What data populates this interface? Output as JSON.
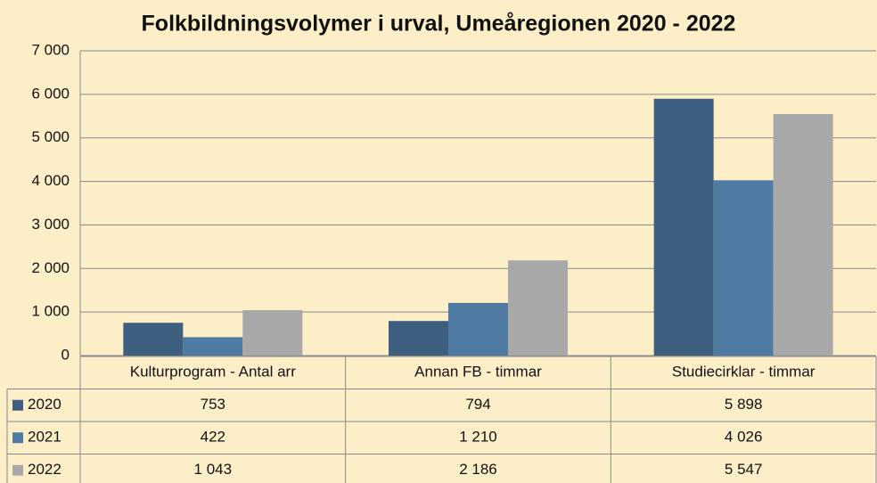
{
  "chart_data": {
    "type": "bar",
    "title": "Folkbildningsvolymer i urval, Umeåregionen 2020 - 2022",
    "categories": [
      "Kulturprogram - Antal arr",
      "Annan FB - timmar",
      "Studiecirklar - timmar"
    ],
    "series": [
      {
        "name": "2020",
        "color": "#3f5f80",
        "values": [
          753,
          794,
          5898
        ],
        "value_labels": [
          "753",
          "794",
          "5 898"
        ]
      },
      {
        "name": "2021",
        "color": "#4f7ba3",
        "values": [
          422,
          1210,
          4026
        ],
        "value_labels": [
          "422",
          "1 210",
          "4 026"
        ]
      },
      {
        "name": "2022",
        "color": "#a8a8a8",
        "values": [
          1043,
          2186,
          5547
        ],
        "value_labels": [
          "1 043",
          "2 186",
          "5 547"
        ]
      }
    ],
    "ylim": [
      0,
      7000
    ],
    "yticks": [
      0,
      {
        "value": 1000,
        "label": "1 000"
      },
      {
        "value": 2000,
        "label": "2 000"
      },
      {
        "value": 3000,
        "label": "3 000"
      },
      {
        "value": 4000,
        "label": "4 000"
      },
      {
        "value": 5000,
        "label": "5 000"
      },
      {
        "value": 6000,
        "label": "6 000"
      },
      {
        "value": 7000,
        "label": "7 000"
      }
    ],
    "grid": true
  }
}
